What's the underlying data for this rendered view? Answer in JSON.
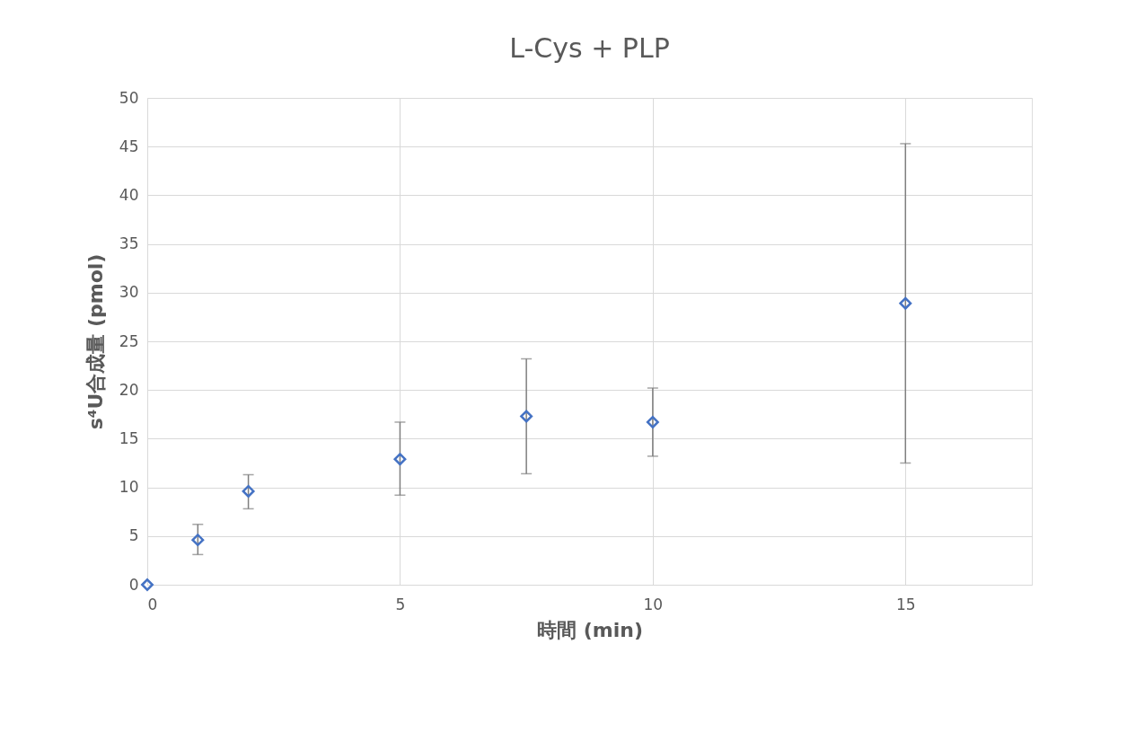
{
  "chart_data": {
    "type": "scatter",
    "title": "L-Cys + PLP",
    "xlabel": "時間 (min)",
    "ylabel": "s⁴U合成量 (pmol)",
    "x": [
      0,
      1,
      2,
      5,
      7.5,
      10,
      15
    ],
    "series": [
      {
        "color": "#4472c4",
        "values": [
          0,
          4.6,
          9.6,
          12.9,
          17.3,
          16.7,
          28.9
        ],
        "errors": [
          null,
          [
            3.1,
            6.2
          ],
          [
            7.8,
            11.3
          ],
          [
            9.2,
            16.7
          ],
          [
            11.4,
            23.2
          ],
          [
            13.2,
            20.2
          ],
          [
            12.5,
            45.3
          ]
        ]
      }
    ],
    "xlim": [
      0,
      17.5
    ],
    "xticks": [
      0,
      5,
      10,
      15
    ],
    "ylim": [
      0,
      50
    ],
    "yticks": [
      0,
      5,
      10,
      15,
      20,
      25,
      30,
      35,
      40,
      45,
      50
    ],
    "grid": true,
    "marker": "diamond"
  }
}
